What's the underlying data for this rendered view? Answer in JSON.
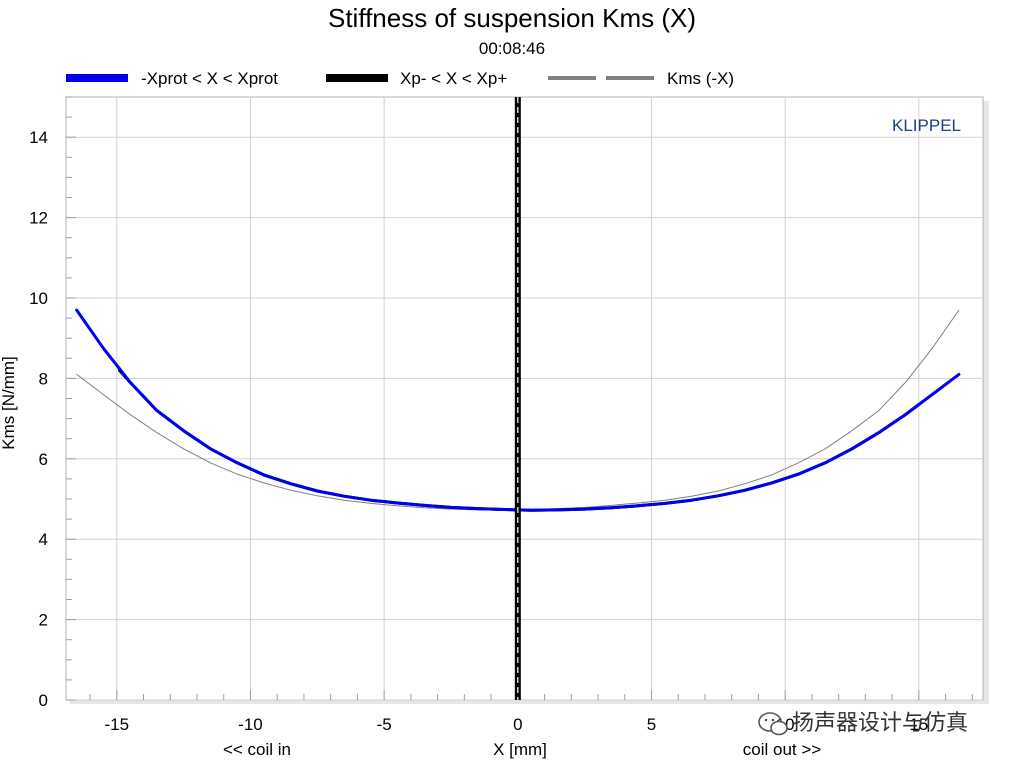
{
  "chart_data": {
    "type": "line",
    "title": "Stiffness of suspension Kms (X)",
    "subtitle": "00:08:46",
    "xlabel": "X [mm]",
    "ylabel": "Kms [N/mm]",
    "x_left_note": "<< coil in",
    "x_right_note": "coil out >>",
    "watermark": "KLIPPEL",
    "credit": "扬声器设计与仿真",
    "xlim": [
      -16.9,
      17.4
    ],
    "ylim": [
      0,
      15
    ],
    "xticks": [
      -15,
      -10,
      -5,
      0,
      5,
      10,
      15
    ],
    "xtick_labels": [
      "-15",
      "-10",
      "-5",
      "0",
      "5",
      "10",
      "15"
    ],
    "yticks": [
      0,
      2,
      4,
      6,
      8,
      10,
      12,
      14
    ],
    "ytick_labels": [
      "0",
      "2",
      "4",
      "6",
      "8",
      "10",
      "12",
      "14"
    ],
    "grid": true,
    "legend_position": "top",
    "vertical_marker_x": 0,
    "series": [
      {
        "name": "-Xprot < X < Xprot",
        "color": "#0000ee",
        "style": "solid-thick",
        "points": [
          [
            -16.5,
            9.7
          ],
          [
            -15.5,
            8.75
          ],
          [
            -14.5,
            7.9
          ],
          [
            -13.5,
            7.2
          ],
          [
            -12.5,
            6.7
          ],
          [
            -11.5,
            6.25
          ],
          [
            -10.5,
            5.9
          ],
          [
            -9.5,
            5.6
          ],
          [
            -8.5,
            5.38
          ],
          [
            -7.5,
            5.2
          ],
          [
            -6.5,
            5.07
          ],
          [
            -5.5,
            4.97
          ],
          [
            -4.5,
            4.9
          ],
          [
            -3.5,
            4.84
          ],
          [
            -2.5,
            4.79
          ],
          [
            -1.5,
            4.76
          ],
          [
            -0.5,
            4.74
          ],
          [
            0,
            4.73
          ],
          [
            0.5,
            4.72
          ],
          [
            1.5,
            4.73
          ],
          [
            2.5,
            4.75
          ],
          [
            3.5,
            4.78
          ],
          [
            4.5,
            4.83
          ],
          [
            5.5,
            4.89
          ],
          [
            6.5,
            4.97
          ],
          [
            7.5,
            5.08
          ],
          [
            8.5,
            5.22
          ],
          [
            9.5,
            5.4
          ],
          [
            10.5,
            5.62
          ],
          [
            11.5,
            5.9
          ],
          [
            12.5,
            6.25
          ],
          [
            13.5,
            6.65
          ],
          [
            14.5,
            7.1
          ],
          [
            15.5,
            7.6
          ],
          [
            16.5,
            8.1
          ]
        ]
      },
      {
        "name": "Xp- < X < Xp+",
        "color": "#000000",
        "style": "solid-thick",
        "points": [
          [
            -14.9,
            8.2
          ],
          [
            -14.5,
            7.9
          ],
          [
            -13.5,
            7.2
          ],
          [
            -12.5,
            6.7
          ],
          [
            -11.5,
            6.25
          ],
          [
            -10.5,
            5.9
          ],
          [
            -9.5,
            5.6
          ],
          [
            -8.5,
            5.38
          ],
          [
            -7.5,
            5.2
          ],
          [
            -6.5,
            5.07
          ],
          [
            -5.5,
            4.97
          ],
          [
            -4.5,
            4.9
          ],
          [
            -3.5,
            4.84
          ],
          [
            -2.5,
            4.79
          ],
          [
            -1.5,
            4.76
          ],
          [
            -0.5,
            4.74
          ],
          [
            0,
            4.73
          ],
          [
            0.5,
            4.72
          ],
          [
            1.5,
            4.73
          ],
          [
            2.5,
            4.75
          ],
          [
            3.5,
            4.78
          ],
          [
            4.5,
            4.83
          ],
          [
            5.5,
            4.89
          ],
          [
            6.5,
            4.97
          ],
          [
            7.5,
            5.08
          ],
          [
            8.5,
            5.22
          ],
          [
            9.5,
            5.4
          ],
          [
            10.5,
            5.62
          ],
          [
            11.5,
            5.9
          ],
          [
            12.5,
            6.25
          ],
          [
            13.5,
            6.65
          ],
          [
            14.5,
            7.1
          ],
          [
            15,
            7.35
          ]
        ]
      },
      {
        "name": "Kms (-X)",
        "color": "#808080",
        "style": "thin",
        "points": [
          [
            -16.5,
            8.1
          ],
          [
            -15.5,
            7.6
          ],
          [
            -14.5,
            7.1
          ],
          [
            -13.5,
            6.65
          ],
          [
            -12.5,
            6.25
          ],
          [
            -11.5,
            5.9
          ],
          [
            -10.5,
            5.62
          ],
          [
            -9.5,
            5.4
          ],
          [
            -8.5,
            5.22
          ],
          [
            -7.5,
            5.08
          ],
          [
            -6.5,
            4.97
          ],
          [
            -5.5,
            4.89
          ],
          [
            -4.5,
            4.83
          ],
          [
            -3.5,
            4.78
          ],
          [
            -2.5,
            4.75
          ],
          [
            -1.5,
            4.73
          ],
          [
            -0.5,
            4.72
          ],
          [
            0,
            4.73
          ],
          [
            0.5,
            4.74
          ],
          [
            1.5,
            4.76
          ],
          [
            2.5,
            4.79
          ],
          [
            3.5,
            4.84
          ],
          [
            4.5,
            4.9
          ],
          [
            5.5,
            4.97
          ],
          [
            6.5,
            5.07
          ],
          [
            7.5,
            5.2
          ],
          [
            8.5,
            5.38
          ],
          [
            9.5,
            5.6
          ],
          [
            10.5,
            5.9
          ],
          [
            11.5,
            6.25
          ],
          [
            12.5,
            6.7
          ],
          [
            13.5,
            7.2
          ],
          [
            14.5,
            7.9
          ],
          [
            15.5,
            8.75
          ],
          [
            16.5,
            9.7
          ]
        ]
      }
    ]
  }
}
